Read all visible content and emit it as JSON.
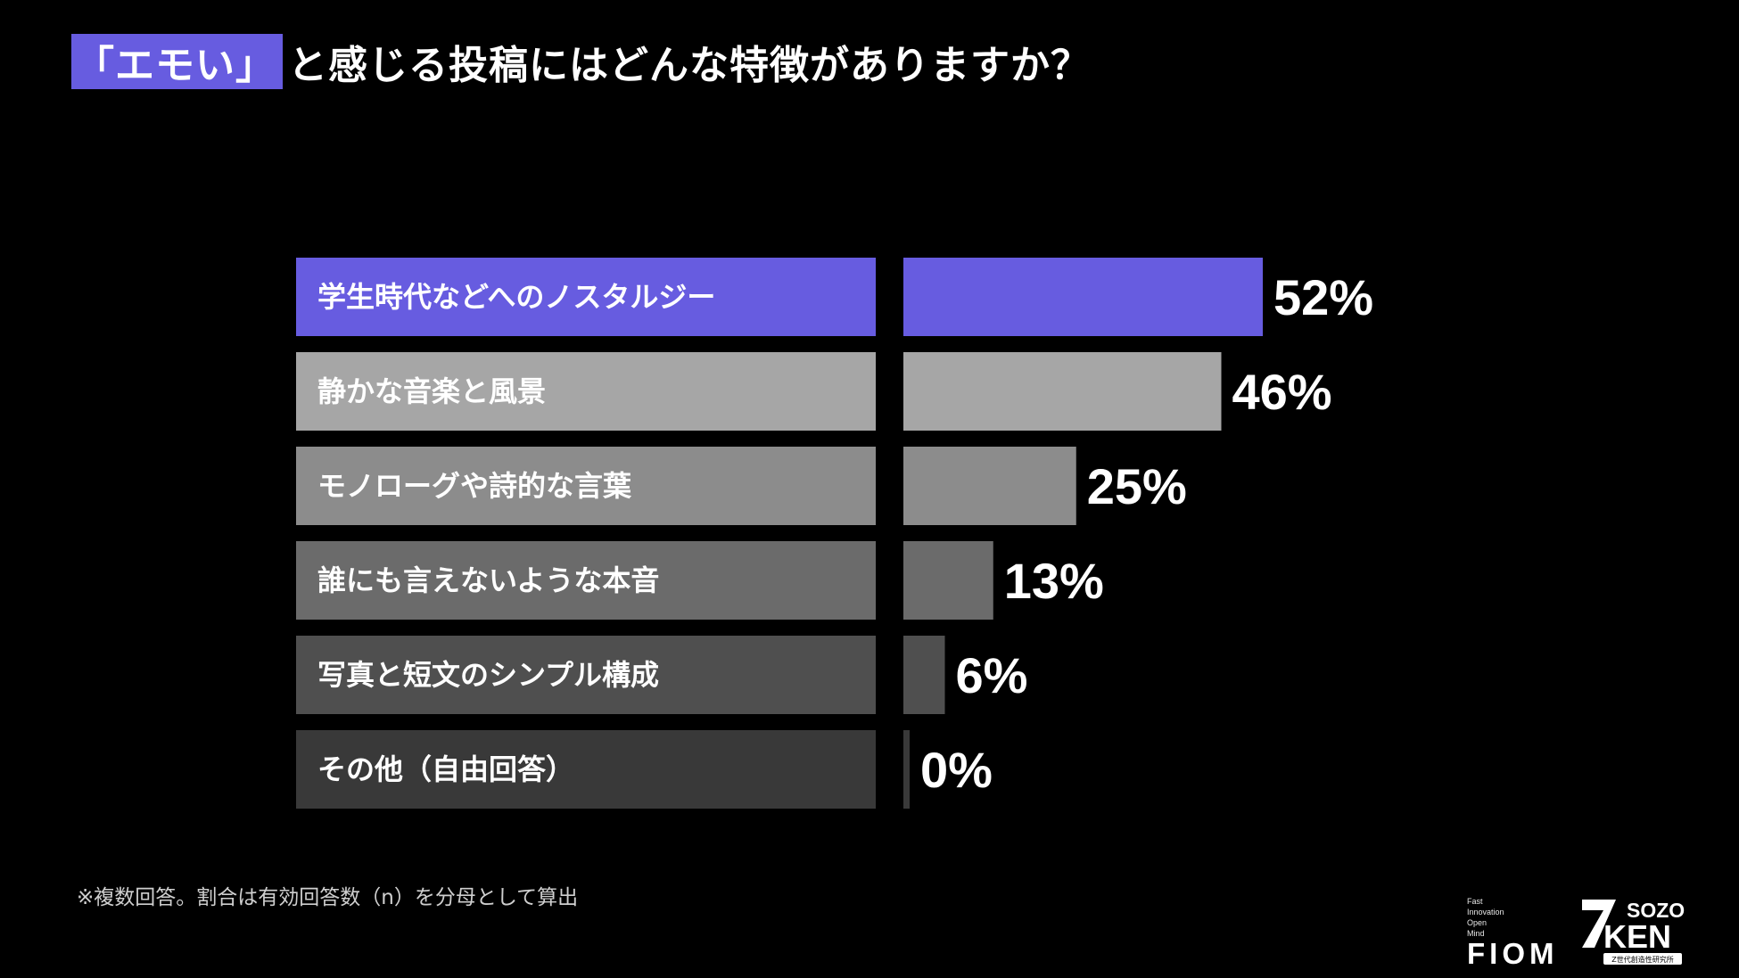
{
  "title": {
    "highlight": "「エモい」",
    "rest": "と感じる投稿にはどんな特徴がありますか？",
    "highlight_color": "#675ce0"
  },
  "chart_data": {
    "type": "bar",
    "orientation": "horizontal",
    "categories": [
      "学生時代などへのノスタルジー",
      "静かな音楽と風景",
      "モノローグや詩的な言葉",
      "誰にも言えないような本音",
      "写真と短文のシンプル構成",
      "その他（自由回答）"
    ],
    "values": [
      52,
      46,
      25,
      13,
      6,
      0
    ],
    "value_labels": [
      "52%",
      "46%",
      "25%",
      "13%",
      "6%",
      "0%"
    ],
    "unit": "%",
    "xlim": [
      0,
      100
    ],
    "colors": [
      "#675ce0",
      "#a6a6a6",
      "#8c8c8c",
      "#6b6b6b",
      "#4f4f4f",
      "#393939"
    ],
    "grid": false,
    "legend": "none"
  },
  "footnote": "※複数回答。割合は有効回答数（n）を分母として算出",
  "logos": {
    "fiom_small_lines": [
      "Fast",
      "Innovation",
      "Open",
      "Mind"
    ],
    "fiom_name": "FIOM",
    "zkm_top": "SOZO",
    "zkm_bottom": "KEN",
    "zkm_sub": "Z世代創造性研究所"
  }
}
